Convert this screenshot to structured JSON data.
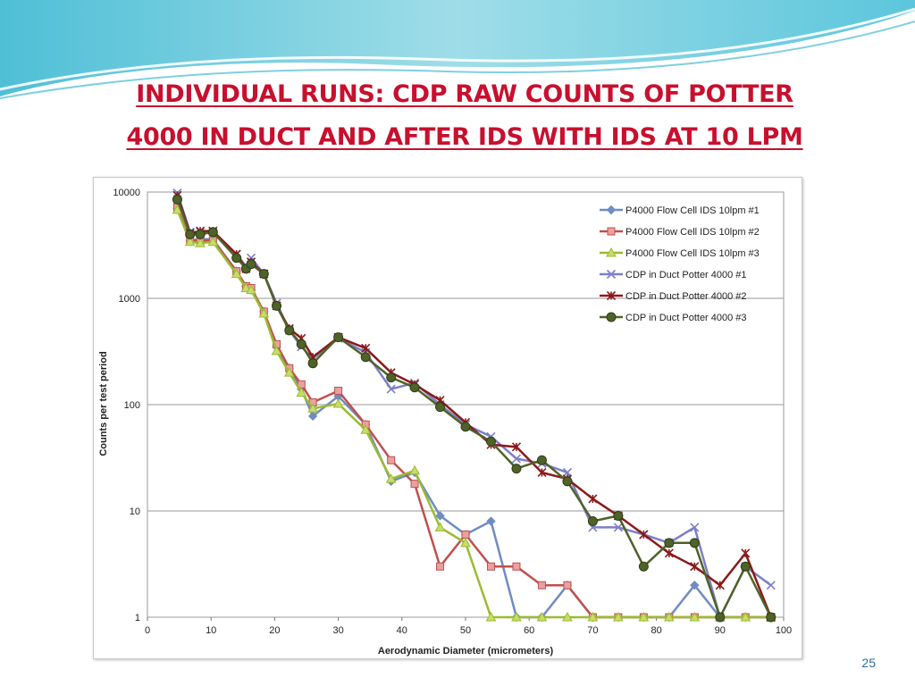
{
  "slide": {
    "title_line1": "INDIVIDUAL RUNS: CDP RAW COUNTS OF POTTER",
    "title_line2": "4000 IN DUCT AND AFTER IDS WITH IDS AT 10 LPM",
    "page_number": "25",
    "title_color": "#c8102e",
    "header_color": "#7fd0e0"
  },
  "chart_data": {
    "type": "line",
    "title": "",
    "xlabel": "Aerodynamic Diameter (micrometers)",
    "ylabel": "Counts per test period",
    "xlim": [
      0,
      100
    ],
    "ylim": [
      1,
      10000
    ],
    "y_scale": "log",
    "x_ticks": [
      0,
      10,
      20,
      30,
      40,
      50,
      60,
      70,
      80,
      90,
      100
    ],
    "y_ticks": [
      1,
      10,
      100,
      1000,
      10000
    ],
    "y_tick_labels": [
      "1",
      "10",
      "100",
      "1000",
      "10000"
    ],
    "grid": "horizontal",
    "legend_position": "top-right",
    "series": [
      {
        "name": "P4000 Flow Cell IDS 10lpm #1",
        "color": "#6f8cc3",
        "marker": "diamond",
        "x": [
          4.7,
          6.7,
          8.3,
          10.3,
          14.0,
          15.5,
          16.3,
          18.3,
          20.3,
          22.3,
          24.2,
          26.0,
          30.0,
          34.3,
          38.3,
          42.0,
          46.0,
          50.0,
          54.0,
          58.0,
          62.0,
          66.0,
          70.0,
          74.0,
          78.0,
          82.0,
          86.0,
          90.0,
          94.0,
          98.0
        ],
        "y": [
          7000,
          3500,
          3600,
          3600,
          1800,
          1300,
          1200,
          750,
          350,
          220,
          140,
          78,
          120,
          65,
          19,
          23,
          9,
          6,
          8,
          1,
          1,
          2,
          1,
          1,
          1,
          1,
          2,
          1,
          1,
          1
        ]
      },
      {
        "name": "P4000 Flow Cell IDS 10lpm #2",
        "color": "#c0504d",
        "marker": "square",
        "x": [
          4.7,
          6.7,
          8.3,
          10.3,
          14.0,
          15.5,
          16.3,
          18.3,
          20.3,
          22.3,
          24.2,
          26.0,
          30.0,
          34.3,
          38.3,
          42.0,
          46.0,
          50.0,
          54.0,
          58.0,
          62.0,
          66.0,
          70.0,
          74.0,
          78.0,
          82.0,
          86.0,
          90.0,
          94.0,
          98.0
        ],
        "y": [
          7200,
          3500,
          3500,
          3500,
          1800,
          1300,
          1250,
          750,
          370,
          220,
          155,
          105,
          135,
          65,
          30,
          18,
          3,
          6,
          3,
          3,
          2,
          2,
          1,
          1,
          1,
          1,
          1,
          1,
          1,
          1
        ]
      },
      {
        "name": "P4000 Flow Cell IDS 10lpm #3",
        "color": "#9bbb2f",
        "marker": "triangle",
        "x": [
          4.7,
          6.7,
          8.3,
          10.3,
          14.0,
          15.5,
          16.3,
          18.3,
          20.3,
          22.3,
          24.2,
          26.0,
          30.0,
          34.3,
          38.3,
          42.0,
          46.0,
          50.0,
          54.0,
          58.0,
          62.0,
          66.0,
          70.0,
          74.0,
          78.0,
          82.0,
          86.0,
          90.0,
          94.0,
          98.0
        ],
        "y": [
          6800,
          3400,
          3300,
          3400,
          1700,
          1250,
          1200,
          720,
          320,
          200,
          130,
          92,
          102,
          58,
          20,
          24,
          7,
          5,
          1,
          1,
          1,
          1,
          1,
          1,
          1,
          1,
          1,
          1,
          1,
          1
        ]
      },
      {
        "name": "CDP in Duct Potter 4000 #1",
        "color": "#7d7fc8",
        "marker": "x",
        "x": [
          4.7,
          6.7,
          8.3,
          10.3,
          14.0,
          15.5,
          16.3,
          18.3,
          20.3,
          22.3,
          24.2,
          26.0,
          30.0,
          34.3,
          38.3,
          42.0,
          46.0,
          50.0,
          54.0,
          58.0,
          62.0,
          66.0,
          70.0,
          74.0,
          78.0,
          82.0,
          86.0,
          90.0,
          94.0,
          98.0
        ],
        "y": [
          9800,
          4200,
          4200,
          4200,
          2600,
          2000,
          2400,
          1700,
          900,
          500,
          350,
          270,
          420,
          310,
          140,
          160,
          100,
          65,
          50,
          31,
          28,
          23,
          7,
          7,
          6,
          5,
          7,
          1,
          3,
          2
        ]
      },
      {
        "name": "CDP in Duct Potter 4000 #2",
        "color": "#8b1a1a",
        "marker": "star",
        "x": [
          4.7,
          6.7,
          8.3,
          10.3,
          14.0,
          15.5,
          16.3,
          18.3,
          20.3,
          22.3,
          24.2,
          26.0,
          30.0,
          34.3,
          38.3,
          42.0,
          46.0,
          50.0,
          54.0,
          58.0,
          62.0,
          66.0,
          70.0,
          74.0,
          78.0,
          82.0,
          86.0,
          90.0,
          94.0,
          98.0
        ],
        "y": [
          9300,
          4100,
          4300,
          4300,
          2600,
          1900,
          2200,
          1700,
          850,
          520,
          420,
          280,
          430,
          340,
          200,
          155,
          110,
          68,
          42,
          40,
          23,
          20,
          13,
          9,
          6,
          4,
          3,
          2,
          4,
          1
        ]
      },
      {
        "name": "CDP in Duct Potter 4000 #3",
        "color": "#4f6228",
        "marker": "circle",
        "x": [
          4.7,
          6.7,
          8.3,
          10.3,
          14.0,
          15.5,
          16.3,
          18.3,
          20.3,
          22.3,
          24.2,
          26.0,
          30.0,
          34.3,
          38.3,
          42.0,
          46.0,
          50.0,
          54.0,
          58.0,
          62.0,
          66.0,
          70.0,
          74.0,
          78.0,
          82.0,
          86.0,
          90.0,
          94.0,
          98.0
        ],
        "y": [
          8500,
          4000,
          4000,
          4200,
          2400,
          1900,
          2100,
          1700,
          850,
          500,
          370,
          245,
          430,
          280,
          180,
          145,
          95,
          62,
          45,
          25,
          30,
          19,
          8,
          9,
          3,
          5,
          5,
          1,
          3,
          1
        ]
      }
    ]
  }
}
